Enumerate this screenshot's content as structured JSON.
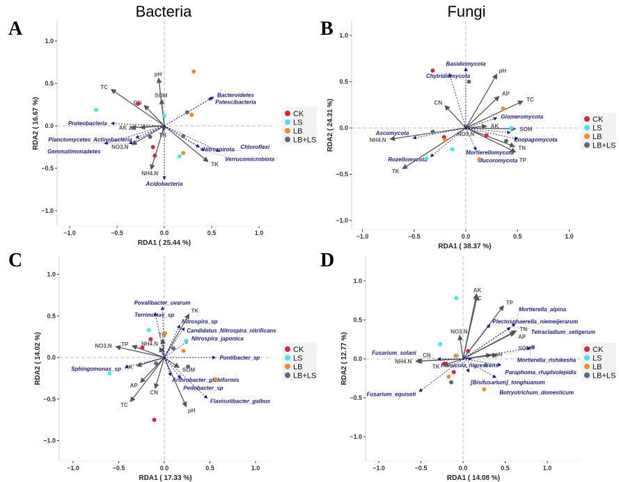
{
  "colors": {
    "CK": "#d7263d",
    "LS": "#44e5f0",
    "LB": "#f28c28",
    "LB+LS": "#5c6b7a",
    "env_arrow": "#555555",
    "species_arrow": "#1a1a8c",
    "refline": "#bbbbbb"
  },
  "titles": {
    "bacteria": "Bacteria",
    "fungi": "Fungi"
  },
  "chart_data": [
    {
      "type": "scatter",
      "panel": "A",
      "xlabel": "RDA1 ( 25.44 %)",
      "ylabel": "RDA2 ( 16.67 %)",
      "xlim": [
        -1.25,
        1.15
      ],
      "ylim": [
        -1.2,
        1.2
      ],
      "xticks": [
        "-1.0",
        "-0.5",
        "0.0",
        "0.5",
        "1.0"
      ],
      "yticks": [
        "-1.0",
        "-0.5",
        "0.0",
        "0.5",
        "1.0"
      ],
      "legend": [
        "CK",
        "LS",
        "LB",
        "LB+LS"
      ],
      "legend_placement": "right",
      "env": [
        {
          "name": "pH",
          "x": -0.06,
          "y": 0.56
        },
        {
          "name": "TC",
          "x": -0.56,
          "y": 0.43
        },
        {
          "name": "SOM",
          "x": -0.03,
          "y": 0.31
        },
        {
          "name": "CN",
          "x": -0.21,
          "y": 0.24
        },
        {
          "name": "AK",
          "x": -0.35,
          "y": -0.02
        },
        {
          "name": "AP",
          "x": -0.25,
          "y": -0.02
        },
        {
          "name": "TN",
          "x": -0.01,
          "y": -0.06
        },
        {
          "name": "NO3.N",
          "x": -0.34,
          "y": -0.22
        },
        {
          "name": "NH4.N",
          "x": -0.14,
          "y": -0.51
        },
        {
          "name": "TK",
          "x": 0.46,
          "y": -0.42
        }
      ],
      "species": [
        {
          "name": "Proteobacteria",
          "x": -0.56,
          "y": 0.03
        },
        {
          "name": "Actinobacteria",
          "x": -0.3,
          "y": -0.14
        },
        {
          "name": "Gemmatimonadetes",
          "x": -0.63,
          "y": -0.21
        },
        {
          "name": "Planctomycetes",
          "x": -0.37,
          "y": -0.21
        },
        {
          "name": "Bacteroidetes",
          "x": 0.52,
          "y": 0.34
        },
        {
          "name": "Patescibacteria",
          "x": 0.5,
          "y": 0.33
        },
        {
          "name": "Nitrospirota",
          "x": 0.37,
          "y": -0.25
        },
        {
          "name": "Verrucomicrobiota",
          "x": 0.42,
          "y": -0.29
        },
        {
          "name": "Chloroflexi",
          "x": 0.58,
          "y": -0.3
        },
        {
          "name": "Acidobacteria",
          "x": 0.0,
          "y": -0.63
        }
      ],
      "samples": [
        {
          "group": "CK",
          "x": -0.28,
          "y": 0.26
        },
        {
          "group": "CK",
          "x": -0.12,
          "y": -0.25
        },
        {
          "group": "CK",
          "x": -0.1,
          "y": -0.35
        },
        {
          "group": "LS",
          "x": -0.72,
          "y": 0.19
        },
        {
          "group": "LS",
          "x": 0.0,
          "y": 0.12
        },
        {
          "group": "LS",
          "x": 0.16,
          "y": -0.36
        },
        {
          "group": "LB",
          "x": 0.31,
          "y": 0.64
        },
        {
          "group": "LB",
          "x": 0.29,
          "y": 0.13
        },
        {
          "group": "LB",
          "x": 0.2,
          "y": -0.32
        },
        {
          "group": "LB+LS",
          "x": 0.24,
          "y": 0.16
        },
        {
          "group": "LB+LS",
          "x": 0.2,
          "y": -0.12
        },
        {
          "group": "LB+LS",
          "x": -0.15,
          "y": -0.13
        }
      ]
    },
    {
      "type": "scatter",
      "panel": "B",
      "xlabel": "RDA1 ( 38.37 %)",
      "ylabel": "RDA2 ( 24.31 %)",
      "xlim": [
        -1.1,
        1.1
      ],
      "ylim": [
        -1.1,
        1.1
      ],
      "xticks": [
        "-1.0",
        "-0.5",
        "0.0",
        "0.5",
        "1.0"
      ],
      "yticks": [
        "-1.0",
        "-0.5",
        "0.0",
        "0.5",
        "1.0"
      ],
      "legend": [
        "CK",
        "LS",
        "LB",
        "LB+LS"
      ],
      "legend_placement": "right",
      "env": [
        {
          "name": "pH",
          "x": 0.3,
          "y": 0.58
        },
        {
          "name": "AP",
          "x": 0.32,
          "y": 0.34
        },
        {
          "name": "TC",
          "x": 0.55,
          "y": 0.29
        },
        {
          "name": "CN",
          "x": -0.2,
          "y": 0.24
        },
        {
          "name": "AK",
          "x": 0.2,
          "y": 0.02
        },
        {
          "name": "SOM",
          "x": 0.48,
          "y": -0.01
        },
        {
          "name": "NO3.N",
          "x": 0.0,
          "y": -0.02
        },
        {
          "name": "NH4.N",
          "x": -0.73,
          "y": -0.12
        },
        {
          "name": "TN",
          "x": 0.47,
          "y": -0.2
        },
        {
          "name": "TP",
          "x": 0.48,
          "y": -0.26
        },
        {
          "name": "TK",
          "x": -0.61,
          "y": -0.44
        }
      ],
      "species": [
        {
          "name": "Basidiomycota",
          "x": 0.0,
          "y": 0.65
        },
        {
          "name": "Chytridiomycota",
          "x": -0.16,
          "y": 0.59
        },
        {
          "name": "Glomeromycota",
          "x": 0.3,
          "y": 0.11
        },
        {
          "name": "Zoopagomycota",
          "x": 0.43,
          "y": -0.05
        },
        {
          "name": "Mortierellomycota",
          "x": 0.5,
          "y": -0.12
        },
        {
          "name": "Mucoromycota",
          "x": 0.1,
          "y": -0.24
        },
        {
          "name": "Rozellomycota",
          "x": -0.34,
          "y": -0.31
        },
        {
          "name": "Ascomycota",
          "x": -0.51,
          "y": -0.11
        }
      ],
      "samples": [
        {
          "group": "CK",
          "x": -0.32,
          "y": 0.62
        },
        {
          "group": "CK",
          "x": -0.21,
          "y": -0.1
        },
        {
          "group": "CK",
          "x": 0.2,
          "y": -0.08
        },
        {
          "group": "LS",
          "x": 0.44,
          "y": 0.0
        },
        {
          "group": "LS",
          "x": -0.13,
          "y": -0.23
        },
        {
          "group": "LS",
          "x": -0.38,
          "y": -0.33
        },
        {
          "group": "LB",
          "x": 0.36,
          "y": 0.21
        },
        {
          "group": "LB",
          "x": -0.2,
          "y": -0.13
        },
        {
          "group": "LB",
          "x": 0.13,
          "y": -0.34
        },
        {
          "group": "LB+LS",
          "x": 0.03,
          "y": 0.5
        },
        {
          "group": "LB+LS",
          "x": -0.32,
          "y": -0.04
        },
        {
          "group": "LB+LS",
          "x": 0.39,
          "y": -0.14
        }
      ]
    },
    {
      "type": "scatter",
      "panel": "C",
      "xlabel": "RDA1 ( 17.33 %)",
      "ylabel": "RDA2 ( 14.02 %)",
      "xlim": [
        -1.25,
        1.15
      ],
      "ylim": [
        -1.25,
        1.2
      ],
      "xticks": [
        "-1.0",
        "-0.5",
        "0.0",
        "0.5",
        "1.0"
      ],
      "yticks": [
        "-1.0",
        "-0.5",
        "0.0",
        "0.5",
        "1.0"
      ],
      "legend": [
        "CK",
        "LS",
        "LB",
        "LB+LS"
      ],
      "legend_placement": "right",
      "env": [
        {
          "name": "TK",
          "x": 0.27,
          "y": 0.52
        },
        {
          "name": "TN",
          "x": -0.02,
          "y": 0.22
        },
        {
          "name": "NH4.N",
          "x": -0.05,
          "y": 0.12
        },
        {
          "name": "TP",
          "x": -0.35,
          "y": 0.14
        },
        {
          "name": "NO3.N",
          "x": -0.53,
          "y": 0.13
        },
        {
          "name": "AK",
          "x": -0.3,
          "y": -0.1
        },
        {
          "name": "SOM",
          "x": 0.16,
          "y": -0.12
        },
        {
          "name": "AP",
          "x": -0.26,
          "y": -0.3
        },
        {
          "name": "CN",
          "x": -0.1,
          "y": -0.37
        },
        {
          "name": "TC",
          "x": -0.37,
          "y": -0.53
        },
        {
          "name": "pH",
          "x": 0.24,
          "y": -0.59
        }
      ],
      "species": [
        {
          "name": "Povalibacter_uvarum",
          "x": -0.02,
          "y": 0.61
        },
        {
          "name": "Terrimonas_sp",
          "x": -0.1,
          "y": 0.54
        },
        {
          "name": "Nitrospira_sp",
          "x": 0.17,
          "y": 0.39
        },
        {
          "name": "Candidatus_Nitrospira_nitrificans",
          "x": 0.22,
          "y": 0.36
        },
        {
          "name": "Nitrospira_japonica",
          "x": 0.26,
          "y": 0.2
        },
        {
          "name": "Pontibacter_sp",
          "x": 0.56,
          "y": 0.0
        },
        {
          "name": "Sphingomonas_sp",
          "x": -0.43,
          "y": -0.12
        },
        {
          "name": "Arthrobacter_globiformis",
          "x": 0.07,
          "y": -0.22
        },
        {
          "name": "Pedobacter_sp",
          "x": 0.18,
          "y": -0.25
        },
        {
          "name": "Flavisolibacter_galbus",
          "x": 0.47,
          "y": -0.49
        }
      ],
      "samples": [
        {
          "group": "CK",
          "x": -0.15,
          "y": 0.22
        },
        {
          "group": "CK",
          "x": -0.24,
          "y": 0.12
        },
        {
          "group": "CK",
          "x": -0.11,
          "y": -0.75
        },
        {
          "group": "LS",
          "x": -0.17,
          "y": 0.33
        },
        {
          "group": "LS",
          "x": 0.24,
          "y": 0.2
        },
        {
          "group": "LS",
          "x": -0.6,
          "y": -0.19
        },
        {
          "group": "LB",
          "x": 0.01,
          "y": 0.29
        },
        {
          "group": "LB",
          "x": 0.21,
          "y": 0.08
        },
        {
          "group": "LB",
          "x": 0.56,
          "y": -0.26
        },
        {
          "group": "LB+LS",
          "x": 0.1,
          "y": 0.11
        },
        {
          "group": "LB+LS",
          "x": -0.09,
          "y": -0.07
        },
        {
          "group": "LB+LS",
          "x": 0.26,
          "y": -0.11
        }
      ]
    },
    {
      "type": "scatter",
      "panel": "D",
      "xlabel": "RDA1 ( 14.08 %)",
      "ylabel": "RDA2 ( 12.77 %)",
      "xlim": [
        -1.2,
        1.4
      ],
      "ylim": [
        -1.35,
        1.3
      ],
      "xticks": [
        "-1.0",
        "-0.5",
        "0.0",
        "0.5",
        "1.0"
      ],
      "yticks": [
        "-1.0",
        "-0.5",
        "0.0",
        "0.5",
        "1.0"
      ],
      "legend": [
        "CK",
        "LS",
        "LB",
        "LB+LS"
      ],
      "legend_placement": "right",
      "env": [
        {
          "name": "AK",
          "x": 0.16,
          "y": 0.83
        },
        {
          "name": "TC",
          "x": 0.17,
          "y": 0.81
        },
        {
          "name": "TP",
          "x": 0.48,
          "y": 0.68
        },
        {
          "name": "TN",
          "x": 0.63,
          "y": 0.36
        },
        {
          "name": "AP",
          "x": 0.61,
          "y": 0.34
        },
        {
          "name": "NO3.N",
          "x": -0.04,
          "y": 0.3
        },
        {
          "name": "pH",
          "x": 0.33,
          "y": 0.05
        },
        {
          "name": "SOM",
          "x": 0.4,
          "y": 0.05
        },
        {
          "name": "NH4.N",
          "x": -0.56,
          "y": -0.03
        },
        {
          "name": "CN",
          "x": -0.54,
          "y": -0.03
        },
        {
          "name": "TK",
          "x": -0.23,
          "y": -0.08
        }
      ],
      "species": [
        {
          "name": "Plectosphaerella_niemeijerarum",
          "x": 0.32,
          "y": 0.44
        },
        {
          "name": "Tetracladium_setigerum",
          "x": 0.56,
          "y": 0.4
        },
        {
          "name": "Mortierella_alpina",
          "x": 0.62,
          "y": 0.45
        },
        {
          "name": "Mortierella_rishikesha",
          "x": 0.8,
          "y": 0.14
        },
        {
          "name": "Paraphoma_rhaphiolepidis",
          "x": 0.45,
          "y": -0.08
        },
        {
          "name": "Fusarium_solani",
          "x": -0.3,
          "y": 0.0
        },
        {
          "name": "Humicola_nigrescens",
          "x": 0.1,
          "y": 0.0
        },
        {
          "name": "[Bisifusarium]_tonghuanum",
          "x": 0.07,
          "y": -0.17
        },
        {
          "name": "Botryotrichum_domesticum",
          "x": 0.39,
          "y": -0.24
        },
        {
          "name": "Fusarium_equiseti",
          "x": -0.52,
          "y": -0.42
        }
      ],
      "samples": [
        {
          "group": "CK",
          "x": 0.06,
          "y": 0.1
        },
        {
          "group": "CK",
          "x": -0.22,
          "y": -0.06
        },
        {
          "group": "CK",
          "x": -0.11,
          "y": -0.17
        },
        {
          "group": "LS",
          "x": -0.08,
          "y": 0.78
        },
        {
          "group": "LS",
          "x": -0.27,
          "y": 0.19
        },
        {
          "group": "LS",
          "x": -0.07,
          "y": 0.04
        },
        {
          "group": "LB",
          "x": -0.09,
          "y": 0.04
        },
        {
          "group": "LB",
          "x": -0.17,
          "y": -0.23
        },
        {
          "group": "LB",
          "x": 0.25,
          "y": -0.39
        },
        {
          "group": "LB+LS",
          "x": 0.83,
          "y": 0.15
        },
        {
          "group": "LB+LS",
          "x": 0.27,
          "y": -0.08
        },
        {
          "group": "LB+LS",
          "x": -0.14,
          "y": -0.3
        }
      ]
    }
  ]
}
